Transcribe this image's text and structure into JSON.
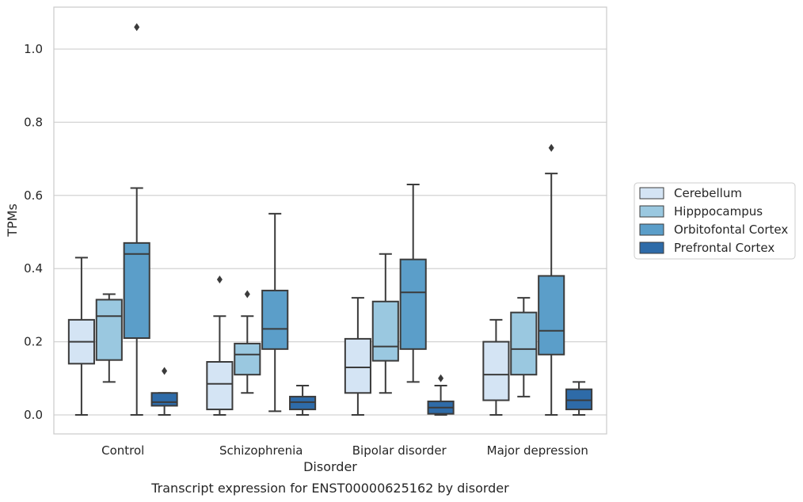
{
  "chart_data": {
    "type": "box",
    "xlabel": "Disorder",
    "ylabel": "TPMs",
    "caption": "Transcript expression for ENST00000625162 by disorder",
    "ylim": [
      -0.05,
      1.116
    ],
    "yticks": [
      "0.0",
      "0.2",
      "0.4",
      "0.6",
      "0.8",
      "1.0"
    ],
    "grid": "horizontal",
    "legend_position": "right",
    "categories": [
      "Control",
      "Schizophrenia",
      "Bipolar disorder",
      "Major depression"
    ],
    "series": [
      {
        "name": "Cerebellum",
        "color": "#d4e4f4",
        "boxes": [
          {
            "whislo": 0.0,
            "q1": 0.14,
            "med": 0.2,
            "q3": 0.26,
            "whishi": 0.43,
            "fliers": []
          },
          {
            "whislo": 0.0,
            "q1": 0.015,
            "med": 0.085,
            "q3": 0.145,
            "whishi": 0.27,
            "fliers": [
              0.37
            ]
          },
          {
            "whislo": 0.0,
            "q1": 0.06,
            "med": 0.13,
            "q3": 0.208,
            "whishi": 0.32,
            "fliers": []
          },
          {
            "whislo": 0.0,
            "q1": 0.04,
            "med": 0.11,
            "q3": 0.2,
            "whishi": 0.26,
            "fliers": []
          }
        ]
      },
      {
        "name": "Hipppocampus",
        "color": "#9ac8e0",
        "boxes": [
          {
            "whislo": 0.09,
            "q1": 0.15,
            "med": 0.27,
            "q3": 0.315,
            "whishi": 0.33,
            "fliers": []
          },
          {
            "whislo": 0.06,
            "q1": 0.11,
            "med": 0.165,
            "q3": 0.195,
            "whishi": 0.27,
            "fliers": [
              0.33
            ]
          },
          {
            "whislo": 0.06,
            "q1": 0.148,
            "med": 0.187,
            "q3": 0.31,
            "whishi": 0.44,
            "fliers": []
          },
          {
            "whislo": 0.05,
            "q1": 0.11,
            "med": 0.18,
            "q3": 0.28,
            "whishi": 0.32,
            "fliers": []
          }
        ]
      },
      {
        "name": "Orbitofontal Cortex",
        "color": "#5b9ec9",
        "boxes": [
          {
            "whislo": 0.0,
            "q1": 0.21,
            "med": 0.44,
            "q3": 0.47,
            "whishi": 0.62,
            "fliers": [
              1.06
            ]
          },
          {
            "whislo": 0.01,
            "q1": 0.18,
            "med": 0.235,
            "q3": 0.34,
            "whishi": 0.55,
            "fliers": []
          },
          {
            "whislo": 0.09,
            "q1": 0.18,
            "med": 0.335,
            "q3": 0.425,
            "whishi": 0.63,
            "fliers": []
          },
          {
            "whislo": 0.0,
            "q1": 0.165,
            "med": 0.23,
            "q3": 0.38,
            "whishi": 0.66,
            "fliers": [
              0.73
            ]
          }
        ]
      },
      {
        "name": "Prefrontal Cortex",
        "color": "#2e6ba8",
        "boxes": [
          {
            "whislo": 0.0,
            "q1": 0.025,
            "med": 0.035,
            "q3": 0.06,
            "whishi": 0.06,
            "fliers": [
              0.12
            ]
          },
          {
            "whislo": 0.0,
            "q1": 0.015,
            "med": 0.035,
            "q3": 0.05,
            "whishi": 0.08,
            "fliers": []
          },
          {
            "whislo": 0.0,
            "q1": 0.003,
            "med": 0.02,
            "q3": 0.037,
            "whishi": 0.08,
            "fliers": [
              0.1
            ]
          },
          {
            "whislo": 0.0,
            "q1": 0.015,
            "med": 0.04,
            "q3": 0.07,
            "whishi": 0.09,
            "fliers": []
          }
        ]
      }
    ]
  }
}
